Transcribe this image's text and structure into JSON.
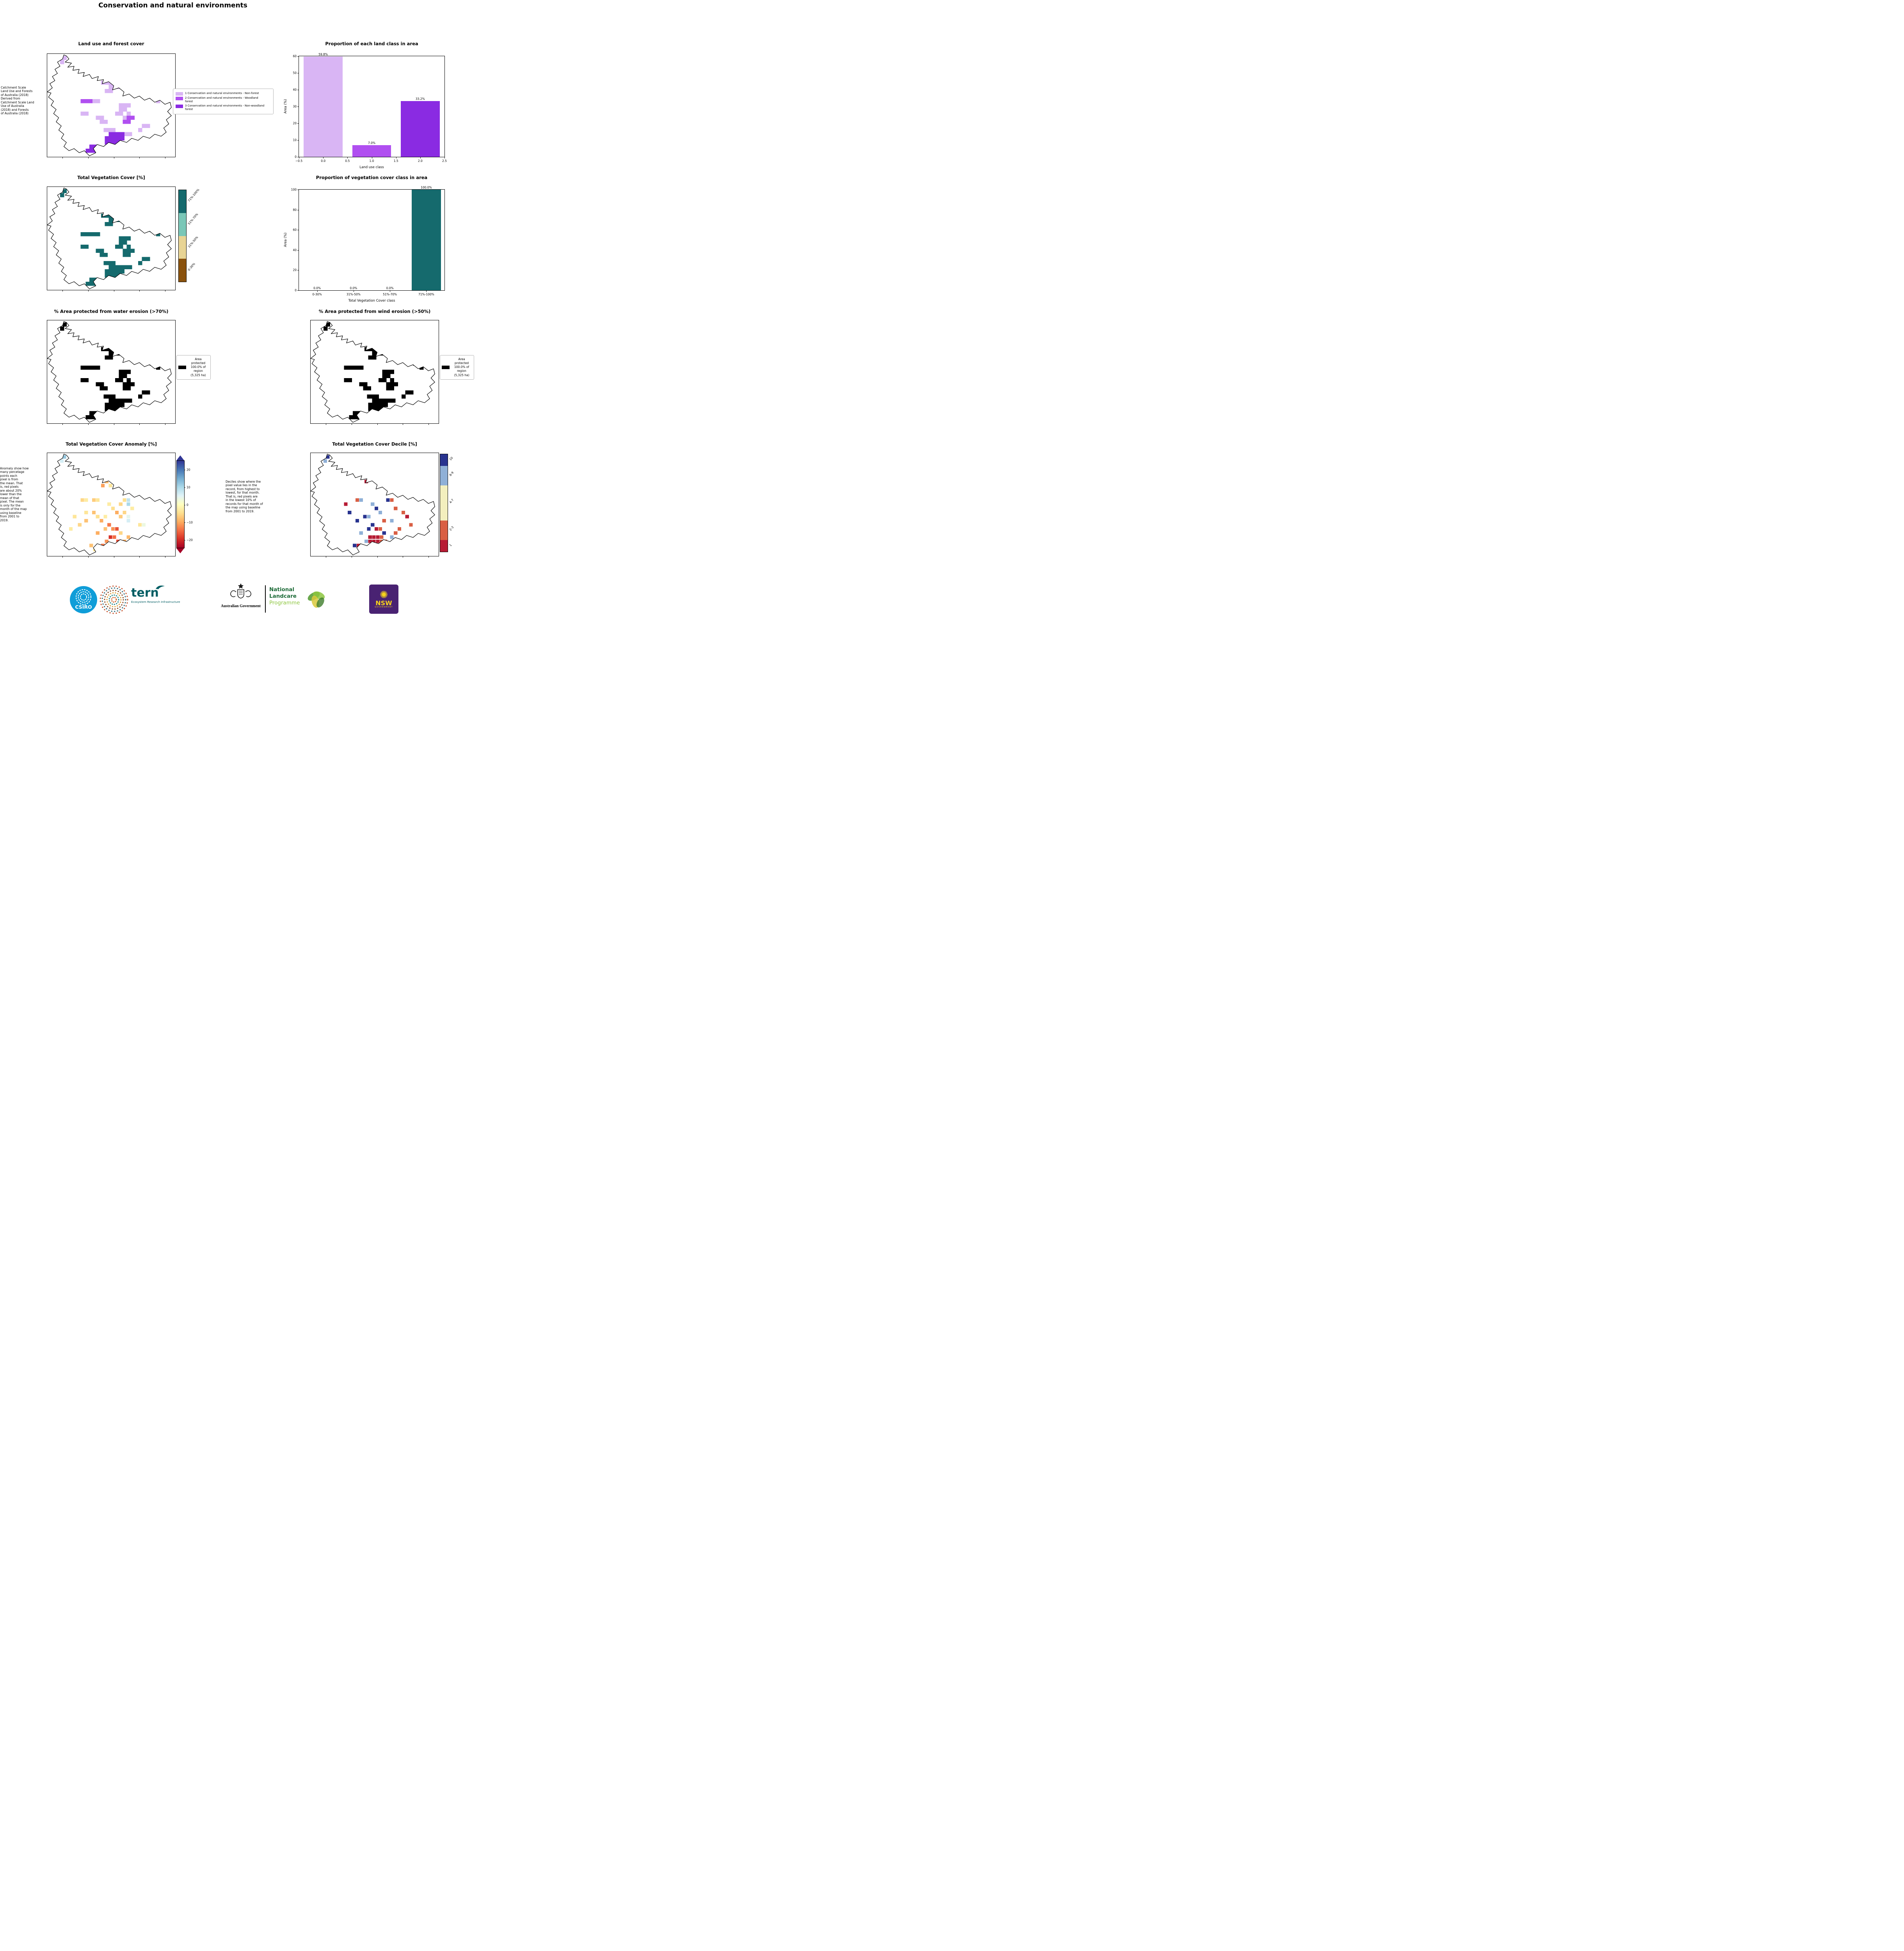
{
  "page": {
    "title": "Conservation and natural environments"
  },
  "panels": {
    "landuse_map": {
      "title": "Land use and forest cover",
      "caption": "Catchment Scale\nLand Use and Forests\nof Australia (2018)\nDerived from\nCatchment Scale Land\nUse of Australia\n(2018) and Forests\nof Australia (2018)",
      "legend": [
        {
          "label": "1 Conservation and natural environments - Non-forest",
          "color": "#d9b5f4"
        },
        {
          "label": "2 Conservation and natural environments - Woodland forest",
          "color": "#b04ff0"
        },
        {
          "label": "3 Conservation and natural environments - Non-woodland forest",
          "color": "#8a2be2"
        }
      ]
    },
    "veg_map": {
      "title": "Total Vegetation Cover [%]"
    },
    "water_map": {
      "title": "% Area protected from water erosion (>70%)",
      "legend_text": "Area\nprotected\n100.0% of\nregion\n(5,325 ha)"
    },
    "wind_map": {
      "title": "% Area protected from wind erosion (>50%)",
      "legend_text": "Area\nprotected\n100.0% of\nregion\n(5,325 ha)"
    },
    "anomaly_map": {
      "title": "Total Vegetation Cover Anomaly [%]",
      "caption": "Anomaly show how\nmany percetage\npoints each\npixel is from\nthe mean. That\nis, red pixels\nare about 20%\nlower than the\nmean of that\npixel. The mean\nis only for the\nmonth of the map\nusing baseline\nfrom 2001 to\n2019."
    },
    "decile_map": {
      "title": "Total Vegetation Cover Decile [%]",
      "caption": "Deciles show where the\npixel value lies in the\nrecord, from highest to\nlowest, for that month.\nThat is, red pixels are\nin the lowest 10% of\nrecords for that month of\nthe map using baseline\nfrom 2001 to 2019."
    }
  },
  "chart_data": [
    {
      "id": "land_class_bar",
      "type": "bar",
      "title": "Proportion of each land class in area",
      "xlabel": "Land use class",
      "ylabel": "Area (%)",
      "x": [
        0,
        1,
        2
      ],
      "values": [
        59.8,
        7.0,
        33.2
      ],
      "bar_labels": [
        "59.8%",
        "7.0%",
        "33.2%"
      ],
      "bar_colors": [
        "#d9b5f4",
        "#b04ff0",
        "#8a2be2"
      ],
      "xlim": [
        -0.5,
        2.5
      ],
      "ylim": [
        0,
        60
      ],
      "xticks": [
        -0.5,
        0.0,
        0.5,
        1.0,
        1.5,
        2.0,
        2.5
      ],
      "xtick_labels": [
        "−0.5",
        "0.0",
        "0.5",
        "1.0",
        "1.5",
        "2.0",
        "2.5"
      ],
      "yticks": [
        0,
        10,
        20,
        30,
        40,
        50,
        60
      ],
      "grid": false,
      "legend": "none"
    },
    {
      "id": "veg_cover_bar",
      "type": "bar",
      "title": "Proportion of vegetation cover class in area",
      "xlabel": "Total Vegetation Cover class",
      "ylabel": "Area (%)",
      "categories": [
        "0-30%",
        "31%-50%",
        "51%-70%",
        "71%-100%"
      ],
      "values": [
        0.0,
        0.0,
        0.0,
        100.0
      ],
      "bar_labels": [
        "0.0%",
        "0.0%",
        "0.0%",
        "100.0%"
      ],
      "bar_colors": [
        "#8a520d",
        "#e8d494",
        "#7ac7b7",
        "#156a6d"
      ],
      "ylim": [
        0,
        100
      ],
      "yticks": [
        0,
        20,
        40,
        60,
        80,
        100
      ],
      "grid": false,
      "legend": "none"
    }
  ],
  "colorbars": {
    "veg": {
      "segments": [
        {
          "label": "0-30%",
          "color": "#8a520d"
        },
        {
          "label": "31%-50%",
          "color": "#e8d494"
        },
        {
          "label": "51%-70%",
          "color": "#7ac7b7"
        },
        {
          "label": "71%-100%",
          "color": "#156a6d"
        }
      ]
    },
    "anomaly": {
      "vmin": -25,
      "vmax": 25,
      "ticks": [
        {
          "v": 20,
          "label": "20"
        },
        {
          "v": 10,
          "label": "10"
        },
        {
          "v": 0,
          "label": "0"
        },
        {
          "v": -10,
          "label": "−10"
        },
        {
          "v": -20,
          "label": "−20"
        }
      ]
    },
    "decile": {
      "segments": [
        {
          "label": "1",
          "color": "#b71b34",
          "frac": 0.12
        },
        {
          "label": "2-3",
          "color": "#d95f44",
          "frac": 0.2
        },
        {
          "label": "4-7",
          "color": "#f3efbe",
          "frac": 0.36
        },
        {
          "label": "8-9",
          "color": "#8fb0d7",
          "frac": 0.2
        },
        {
          "label": "10",
          "color": "#28338f",
          "frac": 0.12
        }
      ]
    }
  },
  "maps": {
    "protected_color": "#000000",
    "veg_solid_color": "#156a6d",
    "landuse_colors": [
      "#d9b5f4",
      "#b04ff0",
      "#8a2be2"
    ],
    "outline": [
      [
        13,
        1
      ],
      [
        15,
        2
      ],
      [
        17,
        5
      ],
      [
        14,
        8
      ],
      [
        19,
        9
      ],
      [
        16,
        13
      ],
      [
        21,
        12
      ],
      [
        20,
        16
      ],
      [
        25,
        15
      ],
      [
        24,
        19
      ],
      [
        29,
        18
      ],
      [
        28,
        22
      ],
      [
        33,
        20
      ],
      [
        35,
        24
      ],
      [
        40,
        22
      ],
      [
        39,
        26
      ],
      [
        44,
        25
      ],
      [
        43,
        29
      ],
      [
        48,
        27
      ],
      [
        52,
        31
      ],
      [
        51,
        35
      ],
      [
        56,
        33
      ],
      [
        60,
        37
      ],
      [
        59,
        41
      ],
      [
        64,
        39
      ],
      [
        68,
        43
      ],
      [
        72,
        41
      ],
      [
        76,
        45
      ],
      [
        80,
        43
      ],
      [
        84,
        47
      ],
      [
        88,
        45
      ],
      [
        92,
        49
      ],
      [
        96,
        47
      ],
      [
        97,
        52
      ],
      [
        94,
        56
      ],
      [
        97,
        60
      ],
      [
        93,
        64
      ],
      [
        95,
        68
      ],
      [
        91,
        72
      ],
      [
        93,
        76
      ],
      [
        89,
        80
      ],
      [
        84,
        78
      ],
      [
        80,
        82
      ],
      [
        75,
        80
      ],
      [
        71,
        84
      ],
      [
        66,
        82
      ],
      [
        62,
        86
      ],
      [
        57,
        84
      ],
      [
        53,
        88
      ],
      [
        48,
        86
      ],
      [
        44,
        90
      ],
      [
        39,
        88
      ],
      [
        36,
        92
      ],
      [
        38,
        96
      ],
      [
        33,
        99
      ],
      [
        29,
        94
      ],
      [
        25,
        96
      ],
      [
        21,
        92
      ],
      [
        17,
        94
      ],
      [
        13,
        90
      ],
      [
        15,
        86
      ],
      [
        11,
        82
      ],
      [
        13,
        78
      ],
      [
        9,
        74
      ],
      [
        11,
        70
      ],
      [
        7,
        66
      ],
      [
        9,
        62
      ],
      [
        5,
        58
      ],
      [
        7,
        54
      ],
      [
        3,
        50
      ],
      [
        5,
        46
      ],
      [
        1,
        42
      ],
      [
        3,
        38
      ],
      [
        0,
        37
      ],
      [
        4,
        33
      ],
      [
        2,
        29
      ],
      [
        6,
        26
      ],
      [
        4,
        22
      ],
      [
        8,
        19
      ],
      [
        6,
        15
      ],
      [
        10,
        12
      ],
      [
        8,
        8
      ],
      [
        12,
        5
      ]
    ],
    "landuse_cells": [
      [
        12,
        2,
        1
      ],
      [
        10,
        6,
        1
      ],
      [
        45,
        18,
        1
      ],
      [
        48,
        18,
        1
      ],
      [
        45,
        22,
        1
      ],
      [
        48,
        22,
        1
      ],
      [
        51,
        22,
        1
      ],
      [
        42,
        26,
        1
      ],
      [
        45,
        26,
        1
      ],
      [
        48,
        26,
        1
      ],
      [
        51,
        26,
        1
      ],
      [
        48,
        30,
        1
      ],
      [
        51,
        30,
        1
      ],
      [
        54,
        30,
        1
      ],
      [
        45,
        34,
        1
      ],
      [
        48,
        34,
        1
      ],
      [
        67,
        24,
        1
      ],
      [
        70,
        24,
        1
      ],
      [
        64,
        28,
        1
      ],
      [
        80,
        40,
        1
      ],
      [
        83,
        40,
        1
      ],
      [
        85,
        44,
        1
      ],
      [
        35,
        44,
        1
      ],
      [
        38,
        44,
        1
      ],
      [
        56,
        48,
        1
      ],
      [
        59,
        48,
        1
      ],
      [
        62,
        48,
        1
      ],
      [
        56,
        52,
        1
      ],
      [
        59,
        52,
        1
      ],
      [
        53,
        56,
        1
      ],
      [
        56,
        56,
        1
      ],
      [
        62,
        56,
        1
      ],
      [
        59,
        60,
        1
      ],
      [
        26,
        56,
        1
      ],
      [
        29,
        56,
        1
      ],
      [
        38,
        60,
        1
      ],
      [
        41,
        60,
        1
      ],
      [
        41,
        64,
        1
      ],
      [
        44,
        64,
        1
      ],
      [
        74,
        68,
        1
      ],
      [
        77,
        68,
        1
      ],
      [
        71,
        72,
        1
      ],
      [
        44,
        72,
        1
      ],
      [
        47,
        72,
        1
      ],
      [
        50,
        72,
        1
      ],
      [
        60,
        76,
        1
      ],
      [
        63,
        76,
        1
      ],
      [
        26,
        44,
        2
      ],
      [
        29,
        44,
        2
      ],
      [
        32,
        44,
        2
      ],
      [
        62,
        60,
        2
      ],
      [
        65,
        60,
        2
      ],
      [
        59,
        64,
        2
      ],
      [
        62,
        64,
        2
      ],
      [
        48,
        76,
        3
      ],
      [
        51,
        76,
        3
      ],
      [
        54,
        76,
        3
      ],
      [
        57,
        76,
        3
      ],
      [
        45,
        80,
        3
      ],
      [
        48,
        80,
        3
      ],
      [
        51,
        80,
        3
      ],
      [
        54,
        80,
        3
      ],
      [
        57,
        80,
        3
      ],
      [
        45,
        84,
        3
      ],
      [
        48,
        84,
        3
      ],
      [
        51,
        84,
        3
      ],
      [
        54,
        84,
        3
      ],
      [
        48,
        88,
        3
      ],
      [
        51,
        88,
        3
      ],
      [
        33,
        88,
        3
      ],
      [
        36,
        88,
        3
      ],
      [
        30,
        92,
        3
      ],
      [
        33,
        92,
        3
      ],
      [
        36,
        92,
        3
      ],
      [
        39,
        92,
        3
      ]
    ],
    "anomaly_cells": [
      [
        12,
        2,
        12
      ],
      [
        10,
        6,
        6
      ],
      [
        45,
        18,
        -4
      ],
      [
        48,
        18,
        -7
      ],
      [
        51,
        22,
        -3
      ],
      [
        45,
        26,
        -9
      ],
      [
        54,
        22,
        6
      ],
      [
        48,
        30,
        -4
      ],
      [
        42,
        30,
        -11
      ],
      [
        67,
        24,
        -3
      ],
      [
        70,
        24,
        5
      ],
      [
        64,
        28,
        4
      ],
      [
        80,
        40,
        -5
      ],
      [
        83,
        40,
        -8
      ],
      [
        35,
        44,
        -7
      ],
      [
        38,
        44,
        -4
      ],
      [
        26,
        44,
        -6
      ],
      [
        29,
        44,
        -3
      ],
      [
        59,
        44,
        -5
      ],
      [
        62,
        44,
        8
      ],
      [
        47,
        48,
        -3
      ],
      [
        56,
        48,
        -6
      ],
      [
        62,
        48,
        10
      ],
      [
        50,
        52,
        -5
      ],
      [
        65,
        52,
        -3
      ],
      [
        35,
        56,
        -8
      ],
      [
        53,
        56,
        -10
      ],
      [
        29,
        56,
        -4
      ],
      [
        59,
        56,
        -6
      ],
      [
        20,
        60,
        -4
      ],
      [
        38,
        60,
        -5
      ],
      [
        44,
        60,
        -3
      ],
      [
        56,
        60,
        -7
      ],
      [
        62,
        60,
        4
      ],
      [
        29,
        64,
        -8
      ],
      [
        41,
        64,
        -10
      ],
      [
        62,
        64,
        6
      ],
      [
        24,
        68,
        -6
      ],
      [
        47,
        68,
        -14
      ],
      [
        71,
        68,
        -4
      ],
      [
        74,
        68,
        3
      ],
      [
        17,
        72,
        -3
      ],
      [
        44,
        72,
        -8
      ],
      [
        50,
        72,
        -12
      ],
      [
        53,
        72,
        -17
      ],
      [
        38,
        76,
        -10
      ],
      [
        56,
        76,
        -6
      ],
      [
        62,
        80,
        -9
      ],
      [
        48,
        80,
        -20
      ],
      [
        51,
        80,
        -15
      ],
      [
        45,
        84,
        -12
      ],
      [
        54,
        84,
        -18
      ],
      [
        59,
        84,
        -10
      ],
      [
        33,
        88,
        -8
      ],
      [
        42,
        88,
        -14
      ],
      [
        59,
        88,
        -7
      ],
      [
        36,
        92,
        -5
      ],
      [
        39,
        92,
        -3
      ]
    ],
    "decile_cells": [
      [
        12,
        2,
        10
      ],
      [
        10,
        6,
        9
      ],
      [
        45,
        18,
        1
      ],
      [
        48,
        18,
        10
      ],
      [
        51,
        18,
        9
      ],
      [
        45,
        22,
        2
      ],
      [
        57,
        22,
        10
      ],
      [
        42,
        26,
        1
      ],
      [
        60,
        26,
        8
      ],
      [
        54,
        30,
        10
      ],
      [
        67,
        24,
        2
      ],
      [
        80,
        40,
        1
      ],
      [
        83,
        40,
        9
      ],
      [
        35,
        44,
        2
      ],
      [
        38,
        44,
        9
      ],
      [
        59,
        44,
        10
      ],
      [
        62,
        44,
        2
      ],
      [
        26,
        48,
        1
      ],
      [
        47,
        48,
        8
      ],
      [
        50,
        52,
        10
      ],
      [
        65,
        52,
        2
      ],
      [
        29,
        56,
        10
      ],
      [
        53,
        56,
        9
      ],
      [
        71,
        56,
        3
      ],
      [
        41,
        60,
        10
      ],
      [
        44,
        60,
        9
      ],
      [
        74,
        60,
        1
      ],
      [
        35,
        64,
        10
      ],
      [
        56,
        64,
        2
      ],
      [
        62,
        64,
        9
      ],
      [
        47,
        68,
        10
      ],
      [
        77,
        68,
        2
      ],
      [
        44,
        72,
        10
      ],
      [
        50,
        72,
        1
      ],
      [
        53,
        72,
        2
      ],
      [
        68,
        72,
        3
      ],
      [
        38,
        76,
        9
      ],
      [
        56,
        76,
        10
      ],
      [
        65,
        76,
        2
      ],
      [
        45,
        80,
        1
      ],
      [
        48,
        80,
        1
      ],
      [
        51,
        80,
        1
      ],
      [
        54,
        80,
        2
      ],
      [
        62,
        80,
        8
      ],
      [
        42,
        84,
        9
      ],
      [
        45,
        84,
        1
      ],
      [
        48,
        84,
        1
      ],
      [
        51,
        84,
        1
      ],
      [
        54,
        84,
        2
      ],
      [
        57,
        84,
        3
      ],
      [
        33,
        88,
        10
      ],
      [
        36,
        88,
        1
      ],
      [
        59,
        88,
        10
      ],
      [
        39,
        92,
        2
      ]
    ]
  },
  "footer": {
    "csiro": {
      "label": "CSIRO",
      "color": "#0f9dd8"
    },
    "tern": {
      "name": "tern",
      "subtitle": "Ecosystem Research Infrastructure",
      "color": "#005d63"
    },
    "aus_gov": {
      "label": "Australian Government"
    },
    "landcare": {
      "line1": "National",
      "line2": "Landcare",
      "line3": "Programme",
      "dark_green": "#1d6b38",
      "light_green": "#8dc63f"
    },
    "nsw": {
      "flower": "✺",
      "name": "NSW",
      "sub": "GOVERNMENT",
      "bg": "#492272",
      "accent": "#f7d31a"
    }
  }
}
